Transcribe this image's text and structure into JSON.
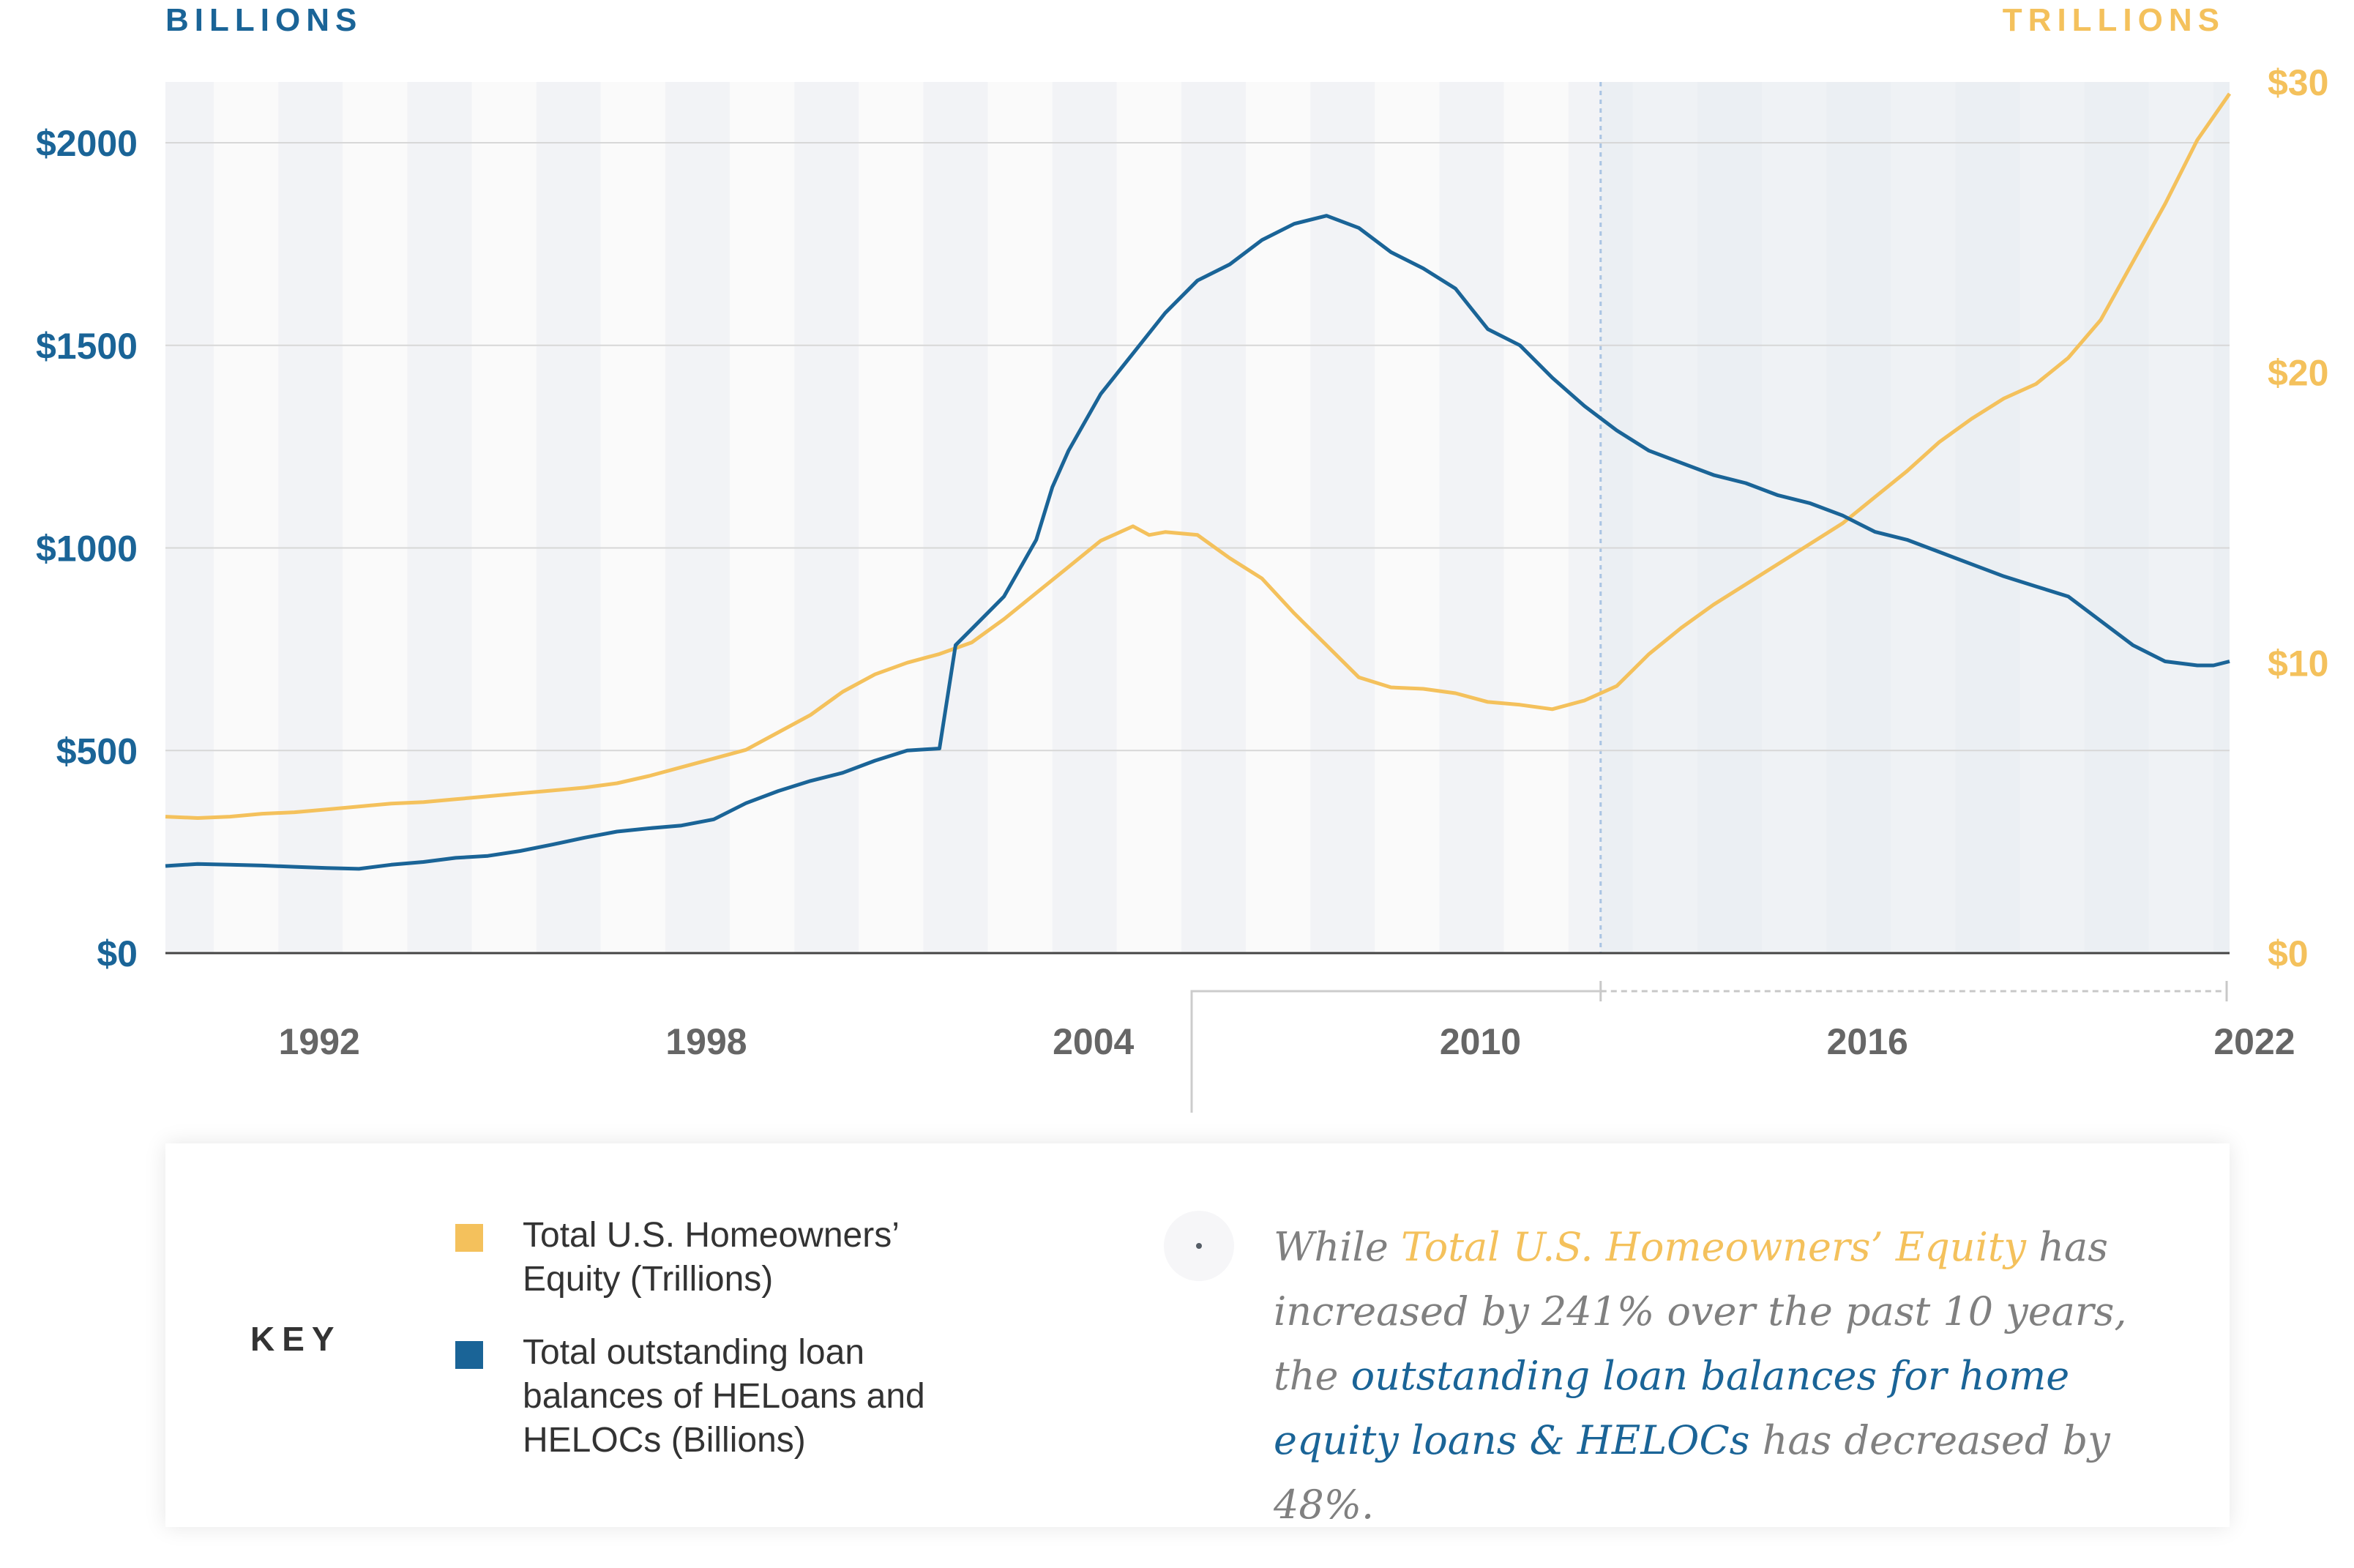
{
  "chart_data": {
    "type": "line",
    "left_axis_caption": "BILLIONS",
    "right_axis_caption": "TRILLIONS",
    "left_ticks": [
      "$0",
      "$500",
      "$1000",
      "$1500",
      "$2000"
    ],
    "left_tick_values": [
      0,
      500,
      1000,
      1500,
      2000
    ],
    "left_ylim": [
      0,
      2150
    ],
    "right_ticks": [
      "$0",
      "$10",
      "$20",
      "$30"
    ],
    "right_tick_values": [
      0,
      10,
      20,
      30
    ],
    "right_ylim": [
      0,
      30
    ],
    "x_ticks": [
      "1992",
      "1998",
      "2004",
      "2010",
      "2016",
      "2022"
    ],
    "x_tick_values": [
      1992,
      1998,
      2004,
      2010,
      2016,
      2022
    ],
    "xlim": [
      1990.25,
      2022.25
    ],
    "highlight_range": [
      2012.5,
      2022.25
    ],
    "series": [
      {
        "name": "Total U.S. Homeowners' Equity (Trillions)",
        "axis": "right",
        "color": "#f4c15c",
        "x": [
          1990.25,
          1990.75,
          1991.25,
          1991.75,
          1992.25,
          1992.75,
          1993.25,
          1993.75,
          1994.25,
          1994.75,
          1995.25,
          1995.75,
          1996.25,
          1996.75,
          1997.25,
          1997.75,
          1998.25,
          1998.75,
          1999.25,
          1999.75,
          2000.25,
          2000.75,
          2001.25,
          2001.75,
          2002.25,
          2002.75,
          2003.25,
          2003.75,
          2004.25,
          2004.75,
          2005.25,
          2005.5,
          2005.75,
          2006.25,
          2006.5,
          2006.75,
          2007.25,
          2007.75,
          2008.25,
          2008.75,
          2009.25,
          2009.75,
          2010.25,
          2010.75,
          2011.25,
          2011.75,
          2012.25,
          2012.75,
          2013.25,
          2013.75,
          2014.25,
          2014.75,
          2015.25,
          2015.75,
          2016.25,
          2016.75,
          2017.25,
          2017.75,
          2018.25,
          2018.75,
          2019.25,
          2019.75,
          2020.25,
          2020.75,
          2021.25,
          2021.75,
          2022.25
        ],
        "values": [
          4.7,
          4.65,
          4.7,
          4.8,
          4.85,
          4.95,
          5.05,
          5.15,
          5.2,
          5.3,
          5.4,
          5.5,
          5.6,
          5.7,
          5.85,
          6.1,
          6.4,
          6.7,
          7.0,
          7.6,
          8.2,
          9.0,
          9.6,
          10.0,
          10.3,
          10.7,
          11.5,
          12.4,
          13.3,
          14.2,
          14.7,
          14.4,
          14.5,
          14.4,
          14.0,
          13.6,
          12.9,
          11.7,
          10.6,
          9.5,
          9.15,
          9.1,
          8.95,
          8.65,
          8.55,
          8.4,
          8.7,
          9.2,
          10.3,
          11.2,
          12.0,
          12.7,
          13.4,
          14.1,
          14.8,
          15.7,
          16.6,
          17.6,
          18.4,
          19.1,
          19.6,
          20.5,
          21.8,
          23.8,
          25.8,
          28.0,
          29.6
        ]
      },
      {
        "name": "Total outstanding loan balances of HELoans and HELOCs (Billions)",
        "axis": "left",
        "color": "#1a6497",
        "x": [
          1990.25,
          1990.75,
          1991.25,
          1991.75,
          1992.25,
          1992.75,
          1993.25,
          1993.75,
          1994.25,
          1994.75,
          1995.25,
          1995.75,
          1996.25,
          1996.75,
          1997.25,
          1997.75,
          1998.25,
          1998.75,
          1999.25,
          1999.75,
          2000.25,
          2000.75,
          2001.25,
          2001.75,
          2002.25,
          2002.5,
          2002.75,
          2003.25,
          2003.75,
          2004.0,
          2004.25,
          2004.75,
          2005.25,
          2005.75,
          2006.25,
          2006.75,
          2007.25,
          2007.75,
          2008.25,
          2008.75,
          2009.25,
          2009.75,
          2010.25,
          2010.5,
          2010.75,
          2011.25,
          2011.75,
          2012.25,
          2012.75,
          2013.25,
          2013.75,
          2014.25,
          2014.75,
          2015.25,
          2015.75,
          2016.25,
          2016.75,
          2017.25,
          2017.75,
          2018.25,
          2018.75,
          2019.25,
          2019.75,
          2020.25,
          2020.75,
          2021.25,
          2021.75,
          2022.0,
          2022.25
        ],
        "values": [
          215,
          220,
          218,
          216,
          213,
          210,
          208,
          218,
          225,
          235,
          240,
          252,
          268,
          285,
          300,
          308,
          315,
          330,
          370,
          400,
          425,
          445,
          475,
          500,
          505,
          760,
          800,
          880,
          1020,
          1150,
          1240,
          1380,
          1480,
          1580,
          1660,
          1700,
          1760,
          1800,
          1820,
          1790,
          1730,
          1690,
          1640,
          1590,
          1540,
          1500,
          1420,
          1350,
          1290,
          1240,
          1210,
          1180,
          1160,
          1130,
          1110,
          1080,
          1040,
          1020,
          990,
          960,
          930,
          905,
          880,
          820,
          760,
          720,
          710,
          710,
          720
        ]
      }
    ]
  },
  "key": {
    "title": "KEY",
    "items": [
      {
        "label": "Total U.S. Homeowners’ Equity (Trillions)",
        "color": "#f4c15c"
      },
      {
        "label": "Total outstanding loan balances of HELoans and HELOCs (Billions)",
        "color": "#1a6497"
      }
    ]
  },
  "note": {
    "lead": "While ",
    "equity_ref": "Total U.S. Homeowners’ Equity",
    "middle": " has increased by 241% over the past 10 years, the ",
    "loan_ref": "outstanding loan balances for home equity loans & HELOCs",
    "tail": " has decreased by 48%."
  }
}
